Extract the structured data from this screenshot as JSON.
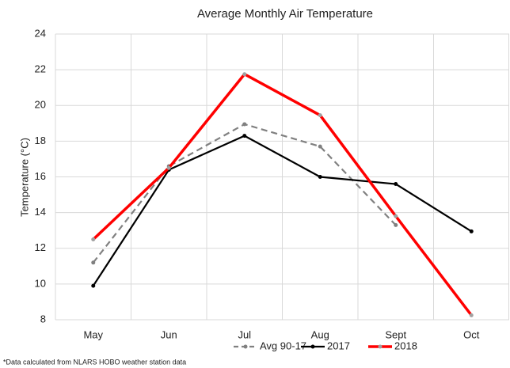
{
  "chart_data": {
    "type": "line",
    "title": "Average Monthly Air Temperature",
    "y_label": "Temperature (°C)",
    "categories": [
      "May",
      "Jun",
      "Jul",
      "Aug",
      "Sept",
      "Oct"
    ],
    "series": [
      {
        "name": "Avg 90-17",
        "color": "#808080",
        "dash": true,
        "marker_color": "#808080",
        "values": [
          11.2,
          16.6,
          18.95,
          17.7,
          13.3,
          null
        ]
      },
      {
        "name": "2017",
        "color": "#000000",
        "dash": false,
        "marker_color": "#000000",
        "values": [
          9.9,
          16.4,
          18.3,
          16.0,
          15.6,
          12.95
        ]
      },
      {
        "name": "2018",
        "color": "#ff0000",
        "dash": false,
        "marker_color": "#a0a0a0",
        "values": [
          12.5,
          16.5,
          21.75,
          19.45,
          13.8,
          8.25
        ]
      }
    ],
    "ylim": [
      8,
      24
    ],
    "yticks": [
      8,
      10,
      12,
      14,
      16,
      18,
      20,
      22,
      24
    ],
    "grid": true,
    "legend": "bottom",
    "footnote": "*Data calculated  from NLARS HOBO weather station data"
  }
}
